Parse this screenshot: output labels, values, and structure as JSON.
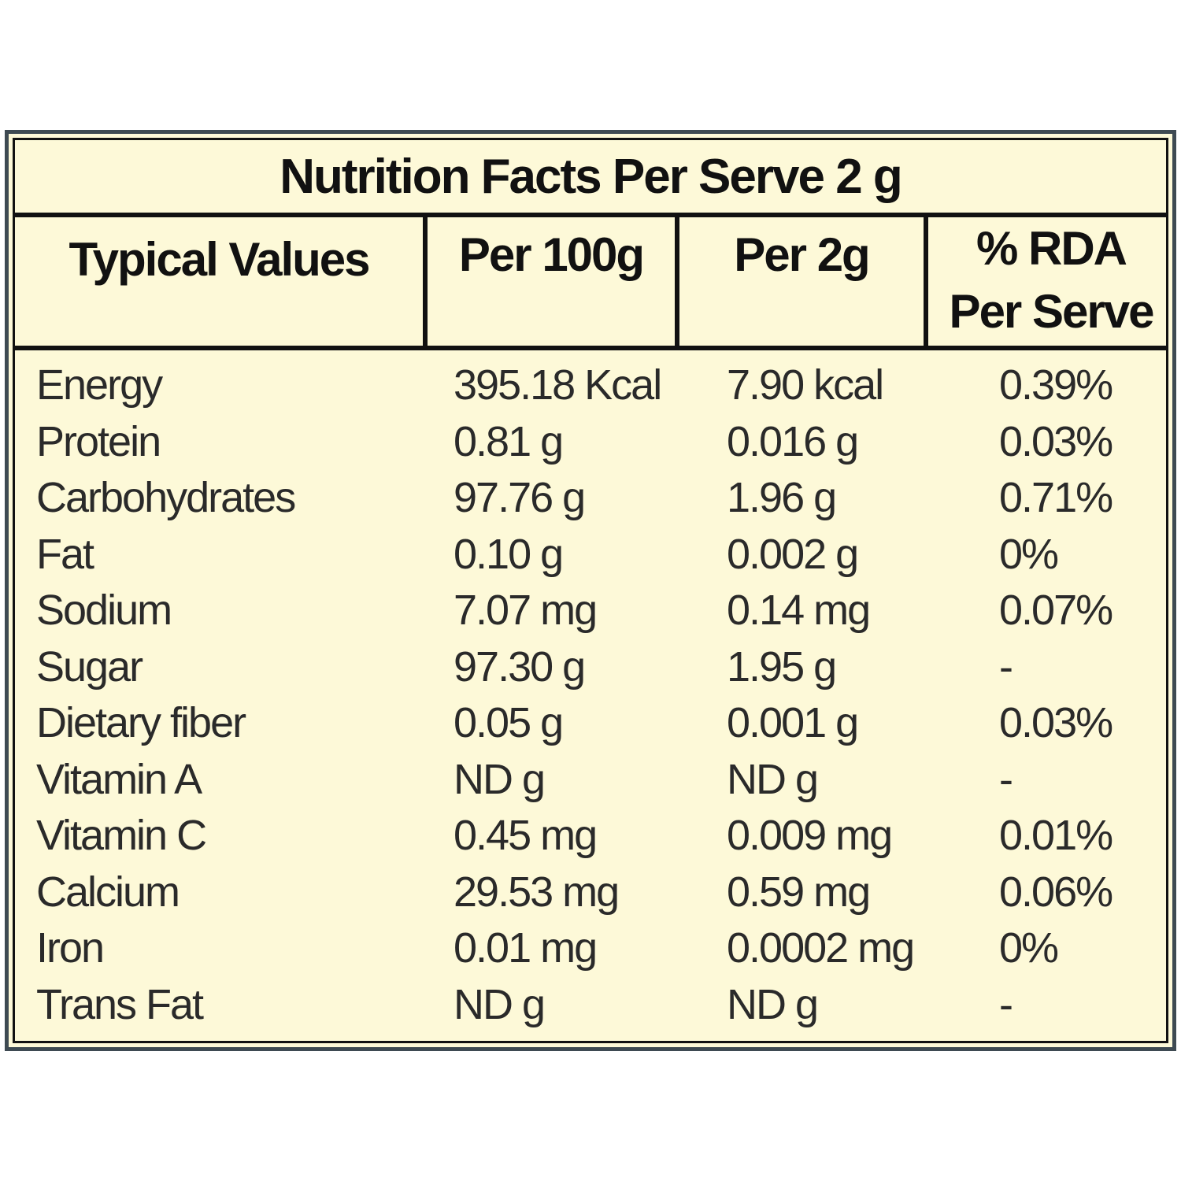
{
  "title": "Nutrition Facts Per Serve 2 g",
  "headers": {
    "typical_values": "Typical Values",
    "per_100g": "Per 100g",
    "per_2g": "Per 2g",
    "rda_line1": "% RDA",
    "rda_line2": "Per Serve"
  },
  "rows": [
    {
      "name": "Energy",
      "per_100g": "395.18 Kcal",
      "per_2g": "7.90 kcal",
      "rda": "0.39%"
    },
    {
      "name": "Protein",
      "per_100g": "0.81 g",
      "per_2g": "0.016 g",
      "rda": "0.03%"
    },
    {
      "name": "Carbohydrates",
      "per_100g": "97.76 g",
      "per_2g": "1.96 g",
      "rda": "0.71%"
    },
    {
      "name": "Fat",
      "per_100g": "0.10 g",
      "per_2g": "0.002 g",
      "rda": "0%"
    },
    {
      "name": "Sodium",
      "per_100g": "7.07 mg",
      "per_2g": "0.14 mg",
      "rda": "0.07%"
    },
    {
      "name": "Sugar",
      "per_100g": "97.30 g",
      "per_2g": "1.95 g",
      "rda": "-"
    },
    {
      "name": "Dietary fiber",
      "per_100g": "0.05 g",
      "per_2g": "0.001 g",
      "rda": "0.03%"
    },
    {
      "name": "Vitamin A",
      "per_100g": "ND g",
      "per_2g": "ND g",
      "rda": "-"
    },
    {
      "name": "Vitamin C",
      "per_100g": "0.45 mg",
      "per_2g": "0.009 mg",
      "rda": "0.01%"
    },
    {
      "name": "Calcium",
      "per_100g": "29.53 mg",
      "per_2g": "0.59 mg",
      "rda": "0.06%"
    },
    {
      "name": "Iron",
      "per_100g": "0.01 mg",
      "per_2g": "0.0002 mg",
      "rda": "0%"
    },
    {
      "name": "Trans Fat",
      "per_100g": "ND g",
      "per_2g": "ND g",
      "rda": "-"
    }
  ],
  "colors": {
    "background": "#fdf9d8",
    "border": "#111111",
    "outer_border": "#3e4a52",
    "text": "#2a2a2a"
  }
}
